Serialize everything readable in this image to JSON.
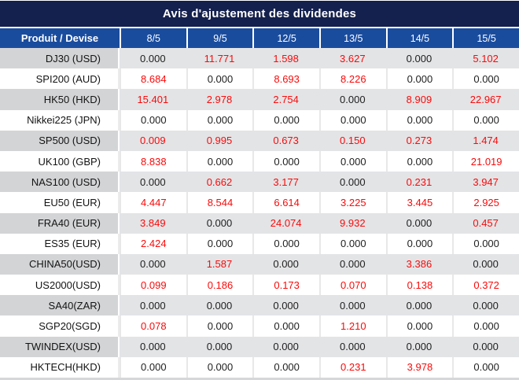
{
  "title": "Avis d'ajustement des dividendes",
  "table": {
    "header": {
      "product_label": "Produit / Devise",
      "dates": [
        "8/5",
        "9/5",
        "12/5",
        "13/5",
        "14/5",
        "15/5"
      ]
    },
    "rows": [
      {
        "product": "DJ30 (USD)",
        "values": [
          "0.000",
          "11.771",
          "1.598",
          "3.627",
          "0.000",
          "5.102"
        ]
      },
      {
        "product": "SPI200 (AUD)",
        "values": [
          "8.684",
          "0.000",
          "8.693",
          "8.226",
          "0.000",
          "0.000"
        ]
      },
      {
        "product": "HK50 (HKD)",
        "values": [
          "15.401",
          "2.978",
          "2.754",
          "0.000",
          "8.909",
          "22.967"
        ]
      },
      {
        "product": "Nikkei225 (JPN)",
        "values": [
          "0.000",
          "0.000",
          "0.000",
          "0.000",
          "0.000",
          "0.000"
        ]
      },
      {
        "product": "SP500 (USD)",
        "values": [
          "0.009",
          "0.995",
          "0.673",
          "0.150",
          "0.273",
          "1.474"
        ]
      },
      {
        "product": "UK100 (GBP)",
        "values": [
          "8.838",
          "0.000",
          "0.000",
          "0.000",
          "0.000",
          "21.019"
        ]
      },
      {
        "product": "NAS100 (USD)",
        "values": [
          "0.000",
          "0.662",
          "3.177",
          "0.000",
          "0.231",
          "3.947"
        ]
      },
      {
        "product": "EU50 (EUR)",
        "values": [
          "4.447",
          "8.544",
          "6.614",
          "3.225",
          "3.445",
          "2.925"
        ]
      },
      {
        "product": "FRA40 (EUR)",
        "values": [
          "3.849",
          "0.000",
          "24.074",
          "9.932",
          "0.000",
          "0.457"
        ]
      },
      {
        "product": "ES35 (EUR)",
        "values": [
          "2.424",
          "0.000",
          "0.000",
          "0.000",
          "0.000",
          "0.000"
        ]
      },
      {
        "product": "CHINA50(USD)",
        "values": [
          "0.000",
          "1.587",
          "0.000",
          "0.000",
          "3.386",
          "0.000"
        ]
      },
      {
        "product": "US2000(USD)",
        "values": [
          "0.099",
          "0.186",
          "0.173",
          "0.070",
          "0.138",
          "0.372"
        ]
      },
      {
        "product": "SA40(ZAR)",
        "values": [
          "0.000",
          "0.000",
          "0.000",
          "0.000",
          "0.000",
          "0.000"
        ]
      },
      {
        "product": "SGP20(SGD)",
        "values": [
          "0.078",
          "0.000",
          "0.000",
          "1.210",
          "0.000",
          "0.000"
        ]
      },
      {
        "product": "TWINDEX(USD)",
        "values": [
          "0.000",
          "0.000",
          "0.000",
          "0.000",
          "0.000",
          "0.000"
        ]
      },
      {
        "product": "HKTECH(HKD)",
        "values": [
          "0.000",
          "0.000",
          "0.000",
          "0.231",
          "3.978",
          "0.000"
        ]
      }
    ]
  },
  "colors": {
    "title_bg": "#14204d",
    "header_bg": "#1a4c9e",
    "row_alt_product_bg": "#d3d4d6",
    "row_alt_data_bg": "#e3e4e6",
    "value_zero": "#1e1e1e",
    "value_nonzero": "#fa0a0a"
  },
  "zero_value_text": "0.000"
}
